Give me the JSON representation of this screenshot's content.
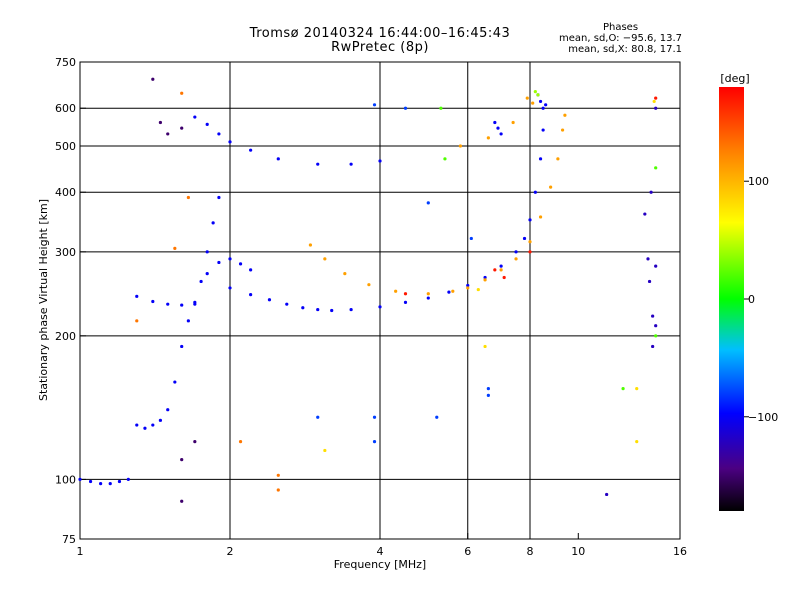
{
  "header": {
    "title_line1": "Tromsø 20140324 16:44:00–16:45:43",
    "title_line2": "RwPretec (8p)",
    "stats_heading": "Phases",
    "stats_o": "mean, sd,O: −95.6, 13.7",
    "stats_x": "mean, sd,X:  80.8, 17.1"
  },
  "chart_data": {
    "type": "scatter",
    "xlabel": "Frequency [MHz]",
    "ylabel": "Stationary phase Virtual Height [km]",
    "x_scale": "log2",
    "y_scale": "log",
    "xlim": [
      1,
      16
    ],
    "ylim": [
      75,
      750
    ],
    "x_ticks": [
      1,
      2,
      4,
      6,
      8,
      10,
      16
    ],
    "x_tick_labels": [
      "1",
      "2",
      "4",
      "6",
      "8",
      "10",
      "16"
    ],
    "x_gridlines": [
      2,
      4,
      6,
      8
    ],
    "y_ticks": [
      75,
      100,
      200,
      300,
      400,
      500,
      600,
      750
    ],
    "y_tick_labels": [
      "75",
      "100",
      "200",
      "300",
      "400",
      "500",
      "600",
      "750"
    ],
    "y_gridlines": [
      100,
      200,
      300,
      400,
      500,
      600
    ],
    "colorbar": {
      "label": "[deg]",
      "min": -180,
      "max": 180,
      "ticks": [
        100,
        0,
        -100
      ],
      "tick_labels": [
        "100",
        "0",
        "−100"
      ]
    },
    "series": [
      {
        "phase": -100,
        "points": [
          [
            1.0,
            100
          ],
          [
            1.05,
            99
          ],
          [
            1.1,
            98
          ],
          [
            1.15,
            98
          ],
          [
            1.2,
            99
          ],
          [
            1.25,
            100
          ]
        ]
      },
      {
        "phase": -100,
        "points": [
          [
            1.3,
            130
          ],
          [
            1.35,
            128
          ],
          [
            1.4,
            130
          ],
          [
            1.45,
            133
          ],
          [
            1.5,
            140
          ],
          [
            1.55,
            160
          ],
          [
            1.6,
            190
          ],
          [
            1.65,
            215
          ],
          [
            1.7,
            235
          ],
          [
            1.75,
            260
          ],
          [
            1.8,
            300
          ],
          [
            1.85,
            345
          ],
          [
            1.9,
            390
          ]
        ]
      },
      {
        "phase": -100,
        "points": [
          [
            1.3,
            242
          ],
          [
            1.4,
            236
          ],
          [
            1.5,
            233
          ],
          [
            1.6,
            232
          ],
          [
            1.7,
            233
          ]
        ]
      },
      {
        "phase": -100,
        "points": [
          [
            1.8,
            270
          ],
          [
            1.9,
            285
          ],
          [
            2.0,
            290
          ],
          [
            2.1,
            283
          ],
          [
            2.2,
            275
          ]
        ]
      },
      {
        "phase": -100,
        "points": [
          [
            2.0,
            252
          ],
          [
            2.2,
            244
          ],
          [
            2.4,
            238
          ],
          [
            2.6,
            233
          ],
          [
            2.8,
            229
          ],
          [
            3.0,
            227
          ],
          [
            3.2,
            226
          ],
          [
            3.5,
            227
          ],
          [
            4.0,
            230
          ],
          [
            4.5,
            235
          ],
          [
            5.0,
            240
          ],
          [
            5.5,
            247
          ],
          [
            6.0,
            255
          ],
          [
            6.5,
            265
          ],
          [
            7.0,
            280
          ],
          [
            7.5,
            300
          ],
          [
            7.8,
            320
          ],
          [
            8.0,
            350
          ],
          [
            8.2,
            400
          ],
          [
            8.4,
            470
          ],
          [
            8.5,
            540
          ],
          [
            8.6,
            610
          ]
        ]
      },
      {
        "phase": -100,
        "points": [
          [
            1.7,
            575
          ],
          [
            1.8,
            555
          ],
          [
            1.9,
            530
          ],
          [
            2.0,
            510
          ],
          [
            2.2,
            490
          ],
          [
            2.5,
            470
          ],
          [
            3.0,
            458
          ],
          [
            3.5,
            458
          ],
          [
            4.0,
            465
          ]
        ]
      },
      {
        "phase": 110,
        "points": [
          [
            2.9,
            310
          ],
          [
            3.1,
            290
          ],
          [
            3.4,
            270
          ],
          [
            3.8,
            256
          ],
          [
            4.3,
            248
          ],
          [
            5.0,
            245
          ],
          [
            5.6,
            248
          ],
          [
            6.0,
            252
          ],
          [
            6.5,
            262
          ],
          [
            7.0,
            275
          ],
          [
            7.5,
            290
          ],
          [
            8.0,
            315
          ],
          [
            8.4,
            355
          ],
          [
            8.8,
            410
          ],
          [
            9.1,
            470
          ],
          [
            9.3,
            540
          ],
          [
            9.4,
            580
          ]
        ]
      },
      {
        "phase": -100,
        "points": [
          [
            8.3,
            640
          ],
          [
            8.4,
            620
          ],
          [
            8.5,
            600
          ]
        ]
      },
      {
        "phase": 110,
        "points": [
          [
            7.9,
            630
          ],
          [
            8.1,
            615
          ],
          [
            7.4,
            560
          ],
          [
            6.6,
            520
          ],
          [
            5.8,
            500
          ]
        ]
      },
      {
        "phase": -100,
        "points": [
          [
            6.8,
            560
          ],
          [
            6.9,
            545
          ],
          [
            7.0,
            530
          ]
        ]
      },
      {
        "phase": 40,
        "points": [
          [
            8.2,
            650
          ],
          [
            8.3,
            640
          ]
        ]
      },
      {
        "phase": -150,
        "points": [
          [
            1.4,
            690
          ],
          [
            1.45,
            560
          ],
          [
            1.5,
            530
          ],
          [
            1.6,
            545
          ],
          [
            1.6,
            110
          ],
          [
            1.6,
            90
          ],
          [
            1.7,
            120
          ]
        ]
      },
      {
        "phase": 130,
        "points": [
          [
            1.6,
            645
          ],
          [
            1.65,
            390
          ],
          [
            1.55,
            305
          ],
          [
            1.3,
            215
          ],
          [
            2.1,
            120
          ],
          [
            2.5,
            102
          ],
          [
            2.5,
            95
          ]
        ]
      },
      {
        "phase": -80,
        "points": [
          [
            4.5,
            600
          ],
          [
            5.0,
            380
          ],
          [
            5.2,
            135
          ],
          [
            3.9,
            135
          ],
          [
            3.9,
            120
          ],
          [
            6.1,
            320
          ],
          [
            6.6,
            155
          ],
          [
            6.6,
            150
          ],
          [
            3.9,
            610
          ],
          [
            3.0,
            135
          ]
        ]
      },
      {
        "phase": 80,
        "points": [
          [
            3.1,
            115
          ],
          [
            6.3,
            250
          ],
          [
            6.5,
            190
          ],
          [
            13.1,
            155
          ],
          [
            13.1,
            120
          ],
          [
            14.2,
            620
          ]
        ]
      },
      {
        "phase": -120,
        "points": [
          [
            11.4,
            93
          ],
          [
            13.6,
            360
          ],
          [
            13.8,
            290
          ],
          [
            13.9,
            260
          ],
          [
            14.1,
            220
          ],
          [
            14.3,
            600
          ],
          [
            14.3,
            280
          ],
          [
            14.0,
            400
          ],
          [
            14.1,
            190
          ],
          [
            14.3,
            210
          ]
        ]
      },
      {
        "phase": 170,
        "points": [
          [
            14.3,
            630
          ],
          [
            6.8,
            275
          ],
          [
            7.1,
            265
          ],
          [
            8.0,
            300
          ],
          [
            4.5,
            245
          ]
        ]
      },
      {
        "phase": 20,
        "points": [
          [
            14.3,
            450
          ],
          [
            14.3,
            200
          ],
          [
            5.3,
            600
          ],
          [
            5.4,
            470
          ],
          [
            12.3,
            155
          ]
        ]
      }
    ]
  }
}
